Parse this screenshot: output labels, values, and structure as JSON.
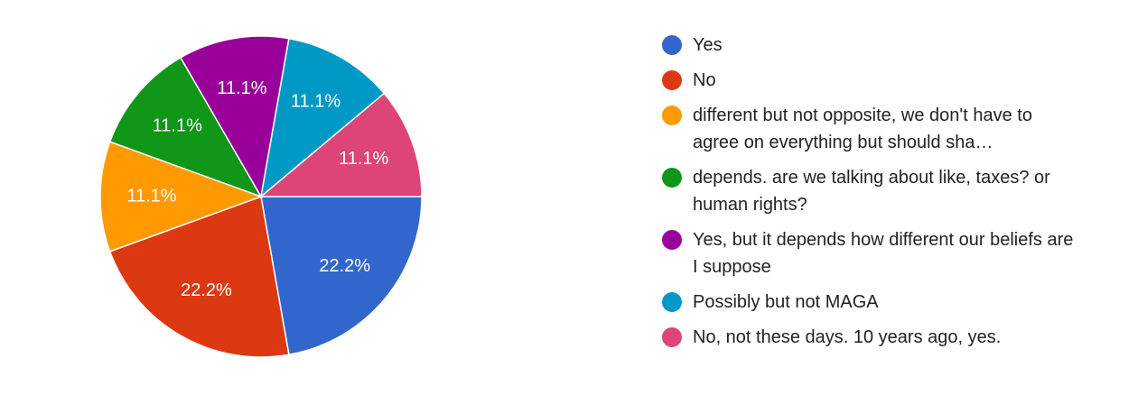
{
  "chart_data": {
    "type": "pie",
    "categories": [
      "Yes",
      "No",
      "different but not opposite, we don't have to agree on everything but should sha…",
      "depends. are we talking about like, taxes? or human rights?",
      "Yes, but it depends how different our beliefs are I suppose",
      "Possibly but not MAGA",
      "No, not these days. 10 years ago, yes."
    ],
    "values": [
      22.2,
      22.2,
      11.1,
      11.1,
      11.1,
      11.1,
      11.1
    ],
    "value_labels": [
      "22.2%",
      "22.2%",
      "11.1%",
      "11.1%",
      "11.1%",
      "11.1%",
      "11.1%"
    ],
    "colors": [
      "#3366cc",
      "#dc3912",
      "#ff9900",
      "#109618",
      "#990099",
      "#0099c6",
      "#dd4477"
    ],
    "legend": "right"
  }
}
